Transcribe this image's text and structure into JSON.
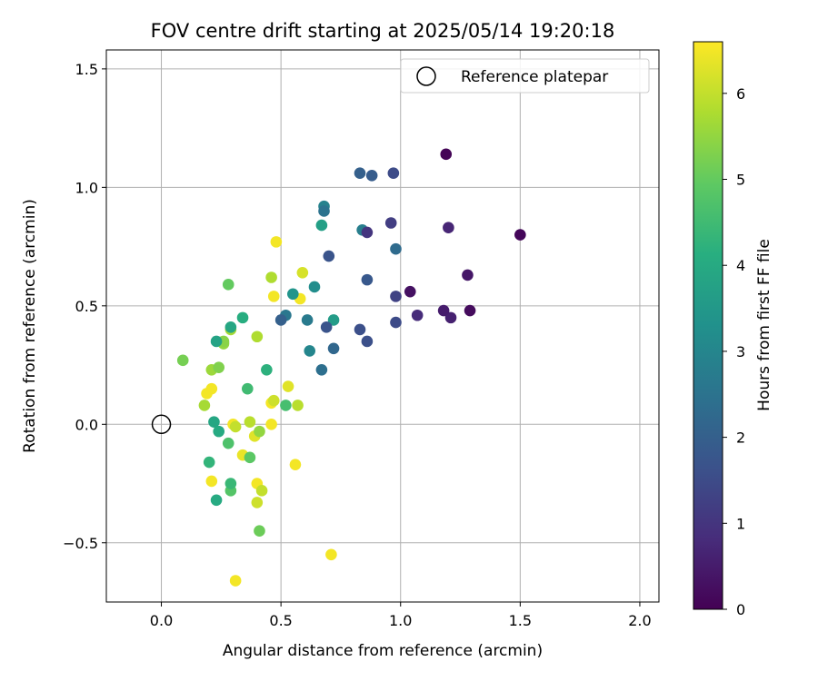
{
  "chart_data": {
    "type": "scatter",
    "title": "FOV centre drift starting at 2025/05/14 19:20:18",
    "xlabel": "Angular distance from reference (arcmin)",
    "ylabel": "Rotation from reference (arcmin)",
    "colorbar_label": "Hours from first FF file",
    "xlim": [
      -0.23,
      2.08
    ],
    "ylim": [
      -0.75,
      1.58
    ],
    "clim": [
      0,
      6.6
    ],
    "colormap": "viridis",
    "grid": true,
    "legend_position": "top-right",
    "x_ticks": [
      {
        "value": 0.0,
        "label": "0.0"
      },
      {
        "value": 0.5,
        "label": "0.5"
      },
      {
        "value": 1.0,
        "label": "1.0"
      },
      {
        "value": 1.5,
        "label": "1.5"
      },
      {
        "value": 2.0,
        "label": "2.0"
      }
    ],
    "y_ticks": [
      {
        "value": -0.5,
        "label": "−0.5"
      },
      {
        "value": 0.0,
        "label": "0.0"
      },
      {
        "value": 0.5,
        "label": "0.5"
      },
      {
        "value": 1.0,
        "label": "1.0"
      },
      {
        "value": 1.5,
        "label": "1.5"
      }
    ],
    "colorbar_ticks": [
      {
        "value": 0,
        "label": "0"
      },
      {
        "value": 1,
        "label": "1"
      },
      {
        "value": 2,
        "label": "2"
      },
      {
        "value": 3,
        "label": "3"
      },
      {
        "value": 4,
        "label": "4"
      },
      {
        "value": 5,
        "label": "5"
      },
      {
        "value": 6,
        "label": "6"
      }
    ],
    "reference": {
      "label": "Reference platepar",
      "x": 0.0,
      "y": 0.0
    },
    "points": [
      {
        "x": 1.19,
        "y": 1.14,
        "h": 0.05
      },
      {
        "x": 1.5,
        "y": 0.8,
        "h": 0.1
      },
      {
        "x": 1.29,
        "y": 0.48,
        "h": 0.2
      },
      {
        "x": 1.04,
        "y": 0.56,
        "h": 0.3
      },
      {
        "x": 1.28,
        "y": 0.63,
        "h": 0.4
      },
      {
        "x": 1.18,
        "y": 0.48,
        "h": 0.5
      },
      {
        "x": 1.21,
        "y": 0.45,
        "h": 0.6
      },
      {
        "x": 1.2,
        "y": 0.83,
        "h": 0.7
      },
      {
        "x": 1.07,
        "y": 0.46,
        "h": 0.8
      },
      {
        "x": 0.86,
        "y": 0.81,
        "h": 1.0
      },
      {
        "x": 0.96,
        "y": 0.85,
        "h": 1.2
      },
      {
        "x": 0.98,
        "y": 0.54,
        "h": 1.3
      },
      {
        "x": 0.97,
        "y": 1.06,
        "h": 1.5
      },
      {
        "x": 0.98,
        "y": 0.43,
        "h": 1.5
      },
      {
        "x": 0.83,
        "y": 0.4,
        "h": 1.6
      },
      {
        "x": 0.86,
        "y": 0.35,
        "h": 1.6
      },
      {
        "x": 0.69,
        "y": 0.41,
        "h": 1.7
      },
      {
        "x": 0.7,
        "y": 0.71,
        "h": 1.7
      },
      {
        "x": 0.86,
        "y": 0.61,
        "h": 1.8
      },
      {
        "x": 0.88,
        "y": 1.05,
        "h": 1.9
      },
      {
        "x": 0.83,
        "y": 1.06,
        "h": 2.0
      },
      {
        "x": 0.5,
        "y": 0.44,
        "h": 2.0
      },
      {
        "x": 0.72,
        "y": 0.32,
        "h": 2.2
      },
      {
        "x": 0.98,
        "y": 0.74,
        "h": 2.3
      },
      {
        "x": 0.67,
        "y": 0.23,
        "h": 2.4
      },
      {
        "x": 0.68,
        "y": 0.9,
        "h": 2.5
      },
      {
        "x": 0.52,
        "y": 0.46,
        "h": 2.6
      },
      {
        "x": 0.61,
        "y": 0.44,
        "h": 2.7
      },
      {
        "x": 0.84,
        "y": 0.82,
        "h": 2.8
      },
      {
        "x": 0.68,
        "y": 0.92,
        "h": 2.9
      },
      {
        "x": 0.62,
        "y": 0.31,
        "h": 3.0
      },
      {
        "x": 0.64,
        "y": 0.58,
        "h": 3.2
      },
      {
        "x": 0.55,
        "y": 0.55,
        "h": 3.4
      },
      {
        "x": 0.72,
        "y": 0.44,
        "h": 3.6
      },
      {
        "x": 0.67,
        "y": 0.84,
        "h": 3.7
      },
      {
        "x": 0.23,
        "y": 0.35,
        "h": 3.8
      },
      {
        "x": 0.29,
        "y": 0.41,
        "h": 3.9
      },
      {
        "x": 0.22,
        "y": 0.01,
        "h": 3.9
      },
      {
        "x": 0.24,
        "y": -0.03,
        "h": 4.0
      },
      {
        "x": 0.23,
        "y": -0.32,
        "h": 4.0
      },
      {
        "x": 0.34,
        "y": 0.45,
        "h": 4.1
      },
      {
        "x": 0.44,
        "y": 0.23,
        "h": 4.2
      },
      {
        "x": 0.2,
        "y": -0.16,
        "h": 4.3
      },
      {
        "x": 0.29,
        "y": -0.25,
        "h": 4.4
      },
      {
        "x": 0.36,
        "y": 0.15,
        "h": 4.5
      },
      {
        "x": 0.52,
        "y": 0.08,
        "h": 4.6
      },
      {
        "x": 0.28,
        "y": -0.08,
        "h": 4.7
      },
      {
        "x": 0.29,
        "y": -0.28,
        "h": 4.8
      },
      {
        "x": 0.37,
        "y": -0.14,
        "h": 4.9
      },
      {
        "x": 0.28,
        "y": 0.59,
        "h": 5.0
      },
      {
        "x": 0.41,
        "y": -0.45,
        "h": 5.1
      },
      {
        "x": 0.09,
        "y": 0.27,
        "h": 5.2
      },
      {
        "x": 0.24,
        "y": 0.24,
        "h": 5.3
      },
      {
        "x": 0.26,
        "y": 0.35,
        "h": 5.4
      },
      {
        "x": 0.26,
        "y": 0.34,
        "h": 5.5
      },
      {
        "x": 0.41,
        "y": -0.03,
        "h": 5.5
      },
      {
        "x": 0.21,
        "y": 0.23,
        "h": 5.6
      },
      {
        "x": 0.18,
        "y": 0.08,
        "h": 5.7
      },
      {
        "x": 0.29,
        "y": 0.4,
        "h": 5.7
      },
      {
        "x": 0.4,
        "y": 0.37,
        "h": 5.8
      },
      {
        "x": 0.46,
        "y": 0.62,
        "h": 5.8
      },
      {
        "x": 0.57,
        "y": 0.08,
        "h": 5.9
      },
      {
        "x": 0.37,
        "y": 0.01,
        "h": 5.9
      },
      {
        "x": 0.31,
        "y": -0.01,
        "h": 6.0
      },
      {
        "x": 0.42,
        "y": -0.28,
        "h": 6.0
      },
      {
        "x": 0.4,
        "y": -0.33,
        "h": 6.1
      },
      {
        "x": 0.47,
        "y": 0.1,
        "h": 6.1
      },
      {
        "x": 0.59,
        "y": 0.64,
        "h": 6.2
      },
      {
        "x": 0.53,
        "y": 0.16,
        "h": 6.3
      },
      {
        "x": 0.39,
        "y": -0.05,
        "h": 6.3
      },
      {
        "x": 0.34,
        "y": -0.13,
        "h": 6.4
      },
      {
        "x": 0.48,
        "y": 0.77,
        "h": 6.5
      },
      {
        "x": 0.47,
        "y": 0.54,
        "h": 6.5
      },
      {
        "x": 0.58,
        "y": 0.53,
        "h": 6.5
      },
      {
        "x": 0.46,
        "y": 0.09,
        "h": 6.5
      },
      {
        "x": 0.46,
        "y": 0.0,
        "h": 6.5
      },
      {
        "x": 0.19,
        "y": 0.13,
        "h": 6.5
      },
      {
        "x": 0.21,
        "y": 0.15,
        "h": 6.5
      },
      {
        "x": 0.3,
        "y": 0.0,
        "h": 6.5
      },
      {
        "x": 0.21,
        "y": -0.24,
        "h": 6.5
      },
      {
        "x": 0.4,
        "y": -0.25,
        "h": 6.5
      },
      {
        "x": 0.56,
        "y": -0.17,
        "h": 6.5
      },
      {
        "x": 0.31,
        "y": -0.66,
        "h": 6.5
      },
      {
        "x": 0.71,
        "y": -0.55,
        "h": 6.5
      }
    ]
  }
}
